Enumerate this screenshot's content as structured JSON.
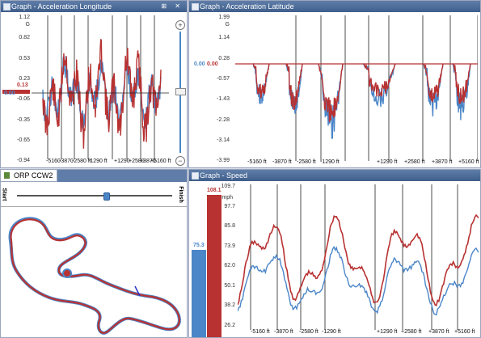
{
  "colors": {
    "red": "#b83232",
    "blue": "#4b86c8"
  },
  "panels": {
    "accel_long": {
      "title": "Graph - Acceleration Longitude",
      "unit": "G",
      "y_ticks": [
        "1.12",
        "0.82",
        "0.53",
        "0.23",
        "-0.06",
        "-0.35",
        "-0.65",
        "-0.94"
      ],
      "value_red": "0.13",
      "value_blue": "0.00",
      "x_ticks": [
        "-5160 ft",
        "-3870 ft",
        "-2580 ft",
        "-1290 ft",
        "+1290 ft",
        "+2580 ft",
        "+3870 ft",
        "+5160 ft"
      ],
      "x_ticks_display": [
        "-5160",
        "-3870",
        "-2580 ft",
        "-1290 ft",
        "+1290",
        "+2580",
        "+3870",
        "+5160 ft"
      ]
    },
    "accel_lat": {
      "title": "Graph - Acceleration Latitude",
      "unit": "G",
      "y_ticks": [
        "1.99",
        "1.14",
        "0.28",
        "-0.57",
        "-1.43",
        "-2.28",
        "-3.14",
        "-3.99"
      ],
      "value_blue": "0.00",
      "value_red": "0.00",
      "x_ticks": [
        "-5160 ft",
        "-3870 ft",
        "-2580 ft",
        "-1290 ft",
        "+1290 ft",
        "+2580 ft",
        "+3870 ft",
        "+5160 ft"
      ]
    },
    "track": {
      "title": "ORP CCW2",
      "start_label": "Start",
      "finish_label": "Finish"
    },
    "speed": {
      "title": "Graph - Speed",
      "unit": "mph",
      "y_ticks": [
        "109.7",
        "97.7",
        "85.8",
        "73.9",
        "62.0",
        "50.1",
        "38.2",
        "26.2"
      ],
      "bar_blue_value": "75.3",
      "bar_red_value": "108.1",
      "x_ticks": [
        "-5160 ft",
        "-3870 ft",
        "-2580 ft",
        "-1290 ft",
        "+1290 ft",
        "+2580 ft",
        "+3870 ft",
        "+5160 ft"
      ]
    }
  }
}
